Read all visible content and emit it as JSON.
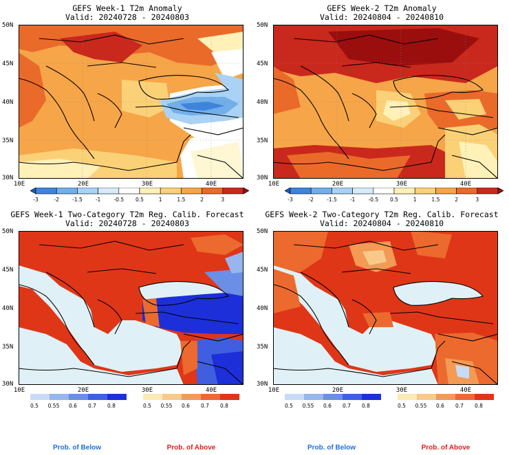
{
  "panels": [
    {
      "title": "GEFS Week-1 T2m Anomaly",
      "valid": "Valid: 20240728 - 20240803"
    },
    {
      "title": "GEFS Week-2 T2m Anomaly",
      "valid": "Valid: 20240804 - 20240810"
    },
    {
      "title": "GEFS Week-1 Two-Category T2m Reg. Calib. Forecast",
      "valid": "Valid: 20240728 - 20240803"
    },
    {
      "title": "GEFS Week-2 Two-Category T2m Reg. Calib. Forecast",
      "valid": "Valid: 20240804 - 20240810"
    }
  ],
  "axes": {
    "lat_labels": [
      "50N",
      "45N",
      "40N",
      "35N",
      "30N"
    ],
    "lon_labels": [
      "10E",
      "20E",
      "30E",
      "40E"
    ]
  },
  "anomaly_colorbar": {
    "labels": [
      "-3",
      "-2",
      "-1.5",
      "-1",
      "-0.5",
      "0.5",
      "1",
      "1.5",
      "2",
      "3"
    ],
    "colors": [
      "#1c5bbf",
      "#3f84dc",
      "#72aeea",
      "#a9d2f4",
      "#d7ebfa",
      "#ffffff",
      "#fff1b8",
      "#fbd178",
      "#f6a548",
      "#ea6a2a",
      "#c9281c",
      "#9a0e0e"
    ]
  },
  "prob_colorbars": {
    "below_labels": [
      "0.5",
      "0.55",
      "0.6",
      "0.7",
      "0.8"
    ],
    "below_colors": [
      "#c7dbf5",
      "#97b6ee",
      "#6b8ee6",
      "#3f5fe0",
      "#1d2fd8"
    ],
    "above_labels": [
      "0.5",
      "0.55",
      "0.6",
      "0.7",
      "0.8"
    ],
    "above_colors": [
      "#fde9b3",
      "#f9c98a",
      "#f39a55",
      "#ec6a2e",
      "#df3618"
    ],
    "legend_below": "Prob. of Below",
    "legend_above": "Prob. of Above",
    "legend_below_color": "#1f6fd8",
    "legend_above_color": "#e01e1e"
  },
  "colors": {
    "sea": "#dff1f6",
    "background": "#ffffff",
    "border": "#000000"
  }
}
